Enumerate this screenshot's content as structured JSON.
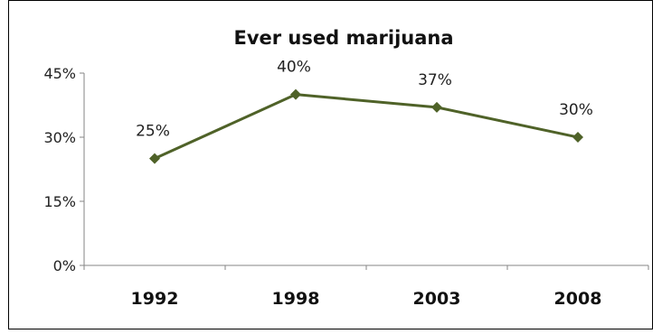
{
  "chart_data": {
    "type": "line",
    "title": "Ever used marijuana",
    "xlabel": "",
    "ylabel": "",
    "categories": [
      "1992",
      "1998",
      "2003",
      "2008"
    ],
    "series": [
      {
        "values": [
          25,
          40,
          37,
          30
        ]
      }
    ],
    "data_labels": [
      "25%",
      "40%",
      "37%",
      "30%"
    ],
    "ylim": [
      0,
      45
    ],
    "yticks": [
      {
        "value": 0,
        "label": "0%"
      },
      {
        "value": 15,
        "label": "15%"
      },
      {
        "value": 30,
        "label": "30%"
      },
      {
        "value": 45,
        "label": "45%"
      }
    ],
    "grid": false,
    "legend": "none",
    "marker": "diamond",
    "line_color": "#4f6228",
    "marker_color": "#4f6228"
  }
}
